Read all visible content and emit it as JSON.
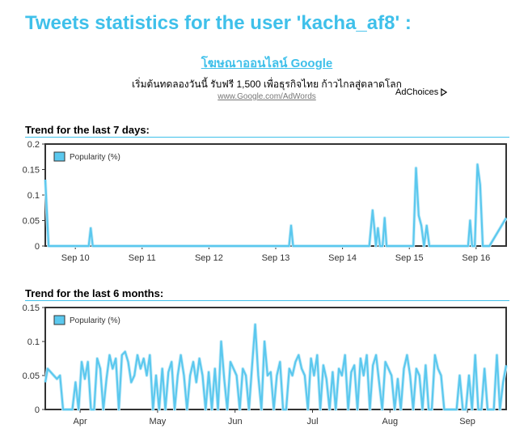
{
  "page": {
    "title": "Tweets statistics for the user 'kacha_af8' :"
  },
  "ad": {
    "title": "โฆษณาออนไลน์ Google",
    "description": "เริ่มต้นทดลองวันนี้ รับฟรี 1,500 เพื่อธุรกิจไทย ก้าวไกลสู่ตลาดโลก",
    "url": "www.Google.com/AdWords",
    "adchoices_label": "AdChoices",
    "adchoices_icon": "adchoices-triangle-icon"
  },
  "colors": {
    "accent": "#3fc0ea",
    "series": "#5bc8ee",
    "plot_border": "#333333"
  },
  "sections": {
    "week": {
      "heading": "Trend for the last 7 days:"
    },
    "months": {
      "heading": "Trend for the last 6 months:"
    }
  },
  "chart_data": [
    {
      "type": "line",
      "title": "Trend for the last 7 days:",
      "legend": {
        "label": "Popularity (%)",
        "position": "top-left"
      },
      "ylim": [
        0,
        0.2
      ],
      "yticks": [
        0,
        0.05,
        0.1,
        0.15,
        0.2
      ],
      "ytick_labels": [
        "0",
        "0.05",
        "0.1",
        "0.15",
        "0.2"
      ],
      "xlim": [
        9.55,
        16.45
      ],
      "xticks": [
        10,
        11,
        12,
        13,
        14,
        15,
        16
      ],
      "xtick_labels": [
        "Sep 10",
        "Sep 11",
        "Sep 12",
        "Sep 13",
        "Sep 14",
        "Sep 15",
        "Sep 16"
      ],
      "grid": false,
      "series": [
        {
          "name": "Popularity (%)",
          "x": [
            9.55,
            9.6,
            9.62,
            10.2,
            10.23,
            10.26,
            10.3,
            13.2,
            13.23,
            13.26,
            14.4,
            14.45,
            14.48,
            14.5,
            14.53,
            14.56,
            14.6,
            14.63,
            14.66,
            15.06,
            15.1,
            15.14,
            15.18,
            15.22,
            15.26,
            15.3,
            15.34,
            15.88,
            15.91,
            15.94,
            15.98,
            16.02,
            16.06,
            16.1,
            16.14,
            16.2,
            16.45
          ],
          "y": [
            0.13,
            0.0,
            0.0,
            0.0,
            0.035,
            0.0,
            0.0,
            0.0,
            0.04,
            0.0,
            0.0,
            0.07,
            0.03,
            0.0,
            0.035,
            0.0,
            0.0,
            0.055,
            0.0,
            0.0,
            0.153,
            0.06,
            0.04,
            0.0,
            0.04,
            0.0,
            0.0,
            0.0,
            0.05,
            0.0,
            0.0,
            0.16,
            0.12,
            0.0,
            0.0,
            0.0,
            0.055
          ]
        }
      ]
    },
    {
      "type": "line",
      "title": "Trend for the last 6 months:",
      "legend": {
        "label": "Popularity (%)",
        "position": "top-left"
      },
      "ylim": [
        0,
        0.15
      ],
      "yticks": [
        0,
        0.05,
        0.1,
        0.15
      ],
      "ytick_labels": [
        "0",
        "0.05",
        "0.1",
        "0.15"
      ],
      "xlim": [
        0.55,
        6.5
      ],
      "xticks": [
        1,
        2,
        3,
        4,
        5,
        6
      ],
      "xtick_labels": [
        "Apr",
        "May",
        "Jun",
        "Jul",
        "Aug",
        "Sep"
      ],
      "grid": false,
      "series": [
        {
          "name": "Popularity (%)",
          "x": [
            0.55,
            0.58,
            0.62,
            0.66,
            0.7,
            0.74,
            0.78,
            0.82,
            0.86,
            0.9,
            0.94,
            0.98,
            1.02,
            1.06,
            1.1,
            1.14,
            1.18,
            1.22,
            1.26,
            1.3,
            1.34,
            1.38,
            1.42,
            1.46,
            1.5,
            1.54,
            1.58,
            1.62,
            1.66,
            1.7,
            1.74,
            1.78,
            1.82,
            1.86,
            1.9,
            1.94,
            1.98,
            2.02,
            2.06,
            2.1,
            2.14,
            2.18,
            2.22,
            2.26,
            2.3,
            2.34,
            2.38,
            2.42,
            2.46,
            2.5,
            2.54,
            2.58,
            2.62,
            2.66,
            2.7,
            2.74,
            2.78,
            2.82,
            2.86,
            2.9,
            2.94,
            2.98,
            3.02,
            3.06,
            3.1,
            3.14,
            3.18,
            3.22,
            3.26,
            3.3,
            3.34,
            3.38,
            3.42,
            3.46,
            3.5,
            3.54,
            3.58,
            3.62,
            3.66,
            3.7,
            3.74,
            3.78,
            3.82,
            3.86,
            3.9,
            3.94,
            3.98,
            4.02,
            4.06,
            4.1,
            4.14,
            4.18,
            4.22,
            4.26,
            4.3,
            4.34,
            4.38,
            4.42,
            4.46,
            4.5,
            4.54,
            4.58,
            4.62,
            4.66,
            4.7,
            4.74,
            4.78,
            4.82,
            4.86,
            4.9,
            4.94,
            4.98,
            5.02,
            5.06,
            5.1,
            5.14,
            5.18,
            5.22,
            5.26,
            5.3,
            5.34,
            5.38,
            5.42,
            5.46,
            5.5,
            5.54,
            5.58,
            5.62,
            5.66,
            5.7,
            5.74,
            5.78,
            5.82,
            5.86,
            5.9,
            5.94,
            5.98,
            6.02,
            6.06,
            6.1,
            6.14,
            6.18,
            6.22,
            6.26,
            6.3,
            6.34,
            6.38,
            6.42,
            6.46,
            6.5
          ],
          "y": [
            0.04,
            0.06,
            0.055,
            0.05,
            0.045,
            0.05,
            0.0,
            0.0,
            0.0,
            0.0,
            0.04,
            0.0,
            0.07,
            0.045,
            0.07,
            0.0,
            0.0,
            0.075,
            0.06,
            0.0,
            0.045,
            0.08,
            0.06,
            0.075,
            0.0,
            0.08,
            0.085,
            0.07,
            0.04,
            0.05,
            0.08,
            0.06,
            0.075,
            0.05,
            0.08,
            0.0,
            0.05,
            0.0,
            0.06,
            0.0,
            0.055,
            0.07,
            0.0,
            0.05,
            0.08,
            0.05,
            0.0,
            0.05,
            0.07,
            0.04,
            0.075,
            0.05,
            0.0,
            0.055,
            0.0,
            0.06,
            0.0,
            0.1,
            0.045,
            0.0,
            0.07,
            0.06,
            0.05,
            0.0,
            0.06,
            0.05,
            0.0,
            0.065,
            0.125,
            0.05,
            0.0,
            0.1,
            0.05,
            0.055,
            0.0,
            0.05,
            0.07,
            0.0,
            0.0,
            0.06,
            0.05,
            0.07,
            0.08,
            0.06,
            0.05,
            0.0,
            0.075,
            0.05,
            0.08,
            0.0,
            0.065,
            0.045,
            0.0,
            0.055,
            0.0,
            0.06,
            0.05,
            0.08,
            0.0,
            0.055,
            0.065,
            0.0,
            0.075,
            0.05,
            0.08,
            0.0,
            0.065,
            0.08,
            0.04,
            0.0,
            0.07,
            0.06,
            0.05,
            0.0,
            0.045,
            0.0,
            0.06,
            0.08,
            0.05,
            0.0,
            0.06,
            0.05,
            0.0,
            0.065,
            0.0,
            0.0,
            0.08,
            0.06,
            0.05,
            0.0,
            0.0,
            0.0,
            0.0,
            0.0,
            0.05,
            0.0,
            0.0,
            0.05,
            0.0,
            0.08,
            0.0,
            0.0,
            0.06,
            0.0,
            0.0,
            0.0,
            0.08,
            0.0,
            0.04,
            0.065
          ]
        }
      ]
    }
  ]
}
